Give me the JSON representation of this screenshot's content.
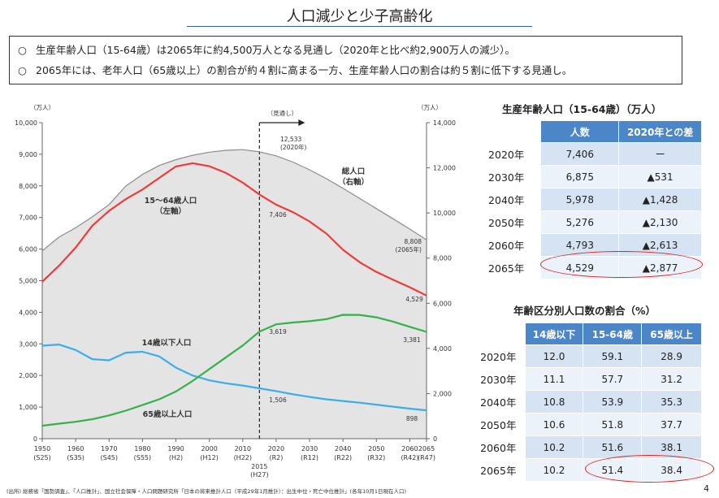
{
  "title": "人口減少と少子高齢化",
  "summary": {
    "bullet_symbol": "○",
    "lines": [
      "生産年齢人口（15-64歳）は2065年に約4,500万人となる見通し（2020年と比べ約2,900万人の減少）。",
      "2065年には、老年人口（65歳以上）の割合が約４割に高まる一方、生産年齢人口の割合は約５割に低下する見通し。"
    ]
  },
  "chart_data": {
    "type": "line",
    "left_unit": "（万人）",
    "right_unit": "（万人）",
    "left_axis": {
      "range": [
        0,
        10000
      ],
      "ticks": [
        "0",
        "1,000",
        "2,000",
        "3,000",
        "4,000",
        "5,000",
        "6,000",
        "7,000",
        "8,000",
        "9,000",
        "10,000"
      ]
    },
    "right_axis": {
      "range": [
        0,
        14000
      ],
      "ticks": [
        "0",
        "2,000",
        "4,000",
        "6,000",
        "8,000",
        "10,000",
        "12,000",
        "14,000"
      ]
    },
    "x_ticks": [
      {
        "x": 1950,
        "top": "1950",
        "bottom": "(S25)"
      },
      {
        "x": 1960,
        "top": "1960",
        "bottom": "(S35)"
      },
      {
        "x": 1970,
        "top": "1970",
        "bottom": "(S45)"
      },
      {
        "x": 1980,
        "top": "1980",
        "bottom": "(S55)"
      },
      {
        "x": 1990,
        "top": "1990",
        "bottom": "(H2)"
      },
      {
        "x": 2000,
        "top": "2000",
        "bottom": "(H12)"
      },
      {
        "x": 2010,
        "top": "2010",
        "bottom": "(H22)"
      },
      {
        "x": 2020,
        "top": "2020",
        "bottom": "(R2)"
      },
      {
        "x": 2030,
        "top": "2030",
        "bottom": "(R12)"
      },
      {
        "x": 2040,
        "top": "2040",
        "bottom": "(R22)"
      },
      {
        "x": 2050,
        "top": "2050",
        "bottom": "(R32)"
      },
      {
        "x": 2060,
        "top": "2060",
        "bottom": "(R42)"
      },
      {
        "x": 2065,
        "top": "2065",
        "bottom": "(R47)"
      }
    ],
    "divider": {
      "year": 2015,
      "label": "2015",
      "sublabel": "(H27)",
      "forecast_label": "（見通し）"
    },
    "series": [
      {
        "name": "総人口",
        "sublabel": "（右軸）",
        "axis": "right",
        "color": "#8c8c8c",
        "fill": "#e4e4e4",
        "x": [
          1950,
          1955,
          1960,
          1965,
          1970,
          1975,
          1980,
          1985,
          1990,
          1995,
          2000,
          2005,
          2010,
          2015,
          2020,
          2025,
          2030,
          2035,
          2040,
          2045,
          2050,
          2055,
          2060,
          2065
        ],
        "values": [
          8320,
          8928,
          9342,
          9828,
          10372,
          11194,
          11706,
          12105,
          12361,
          12557,
          12693,
          12777,
          12806,
          12709,
          12533,
          12254,
          11913,
          11522,
          11092,
          10642,
          10192,
          9744,
          9284,
          8808
        ]
      },
      {
        "name": "15～64歳人口",
        "sublabel": "（左軸）",
        "axis": "left",
        "color": "#f03a3a",
        "x": [
          1950,
          1955,
          1960,
          1965,
          1970,
          1975,
          1980,
          1985,
          1990,
          1995,
          2000,
          2005,
          2010,
          2015,
          2020,
          2025,
          2030,
          2035,
          2040,
          2045,
          2050,
          2055,
          2060,
          2065
        ],
        "values": [
          4966,
          5473,
          6047,
          6744,
          7212,
          7581,
          7884,
          8251,
          8614,
          8717,
          8622,
          8409,
          8103,
          7728,
          7406,
          7170,
          6875,
          6494,
          5978,
          5584,
          5276,
          5028,
          4793,
          4529
        ]
      },
      {
        "name": "14歳以下人口",
        "axis": "left",
        "color": "#3aaee8",
        "x": [
          1950,
          1955,
          1960,
          1965,
          1970,
          1975,
          1980,
          1985,
          1990,
          1995,
          2000,
          2005,
          2010,
          2015,
          2020,
          2025,
          2030,
          2035,
          2040,
          2045,
          2050,
          2055,
          2060,
          2065
        ],
        "values": [
          2943,
          2980,
          2807,
          2517,
          2482,
          2722,
          2751,
          2603,
          2249,
          2001,
          1847,
          1752,
          1680,
          1595,
          1506,
          1407,
          1321,
          1246,
          1194,
          1138,
          1077,
          1012,
          951,
          898
        ]
      },
      {
        "name": "65歳以上人口",
        "axis": "left",
        "color": "#34b24a",
        "x": [
          1950,
          1955,
          1960,
          1965,
          1970,
          1975,
          1980,
          1985,
          1990,
          1995,
          2000,
          2005,
          2010,
          2015,
          2020,
          2025,
          2030,
          2035,
          2040,
          2045,
          2050,
          2055,
          2060,
          2065
        ],
        "values": [
          411,
          475,
          535,
          618,
          739,
          887,
          1065,
          1247,
          1493,
          1828,
          2204,
          2576,
          2948,
          3387,
          3619,
          3677,
          3716,
          3782,
          3921,
          3919,
          3841,
          3704,
          3540,
          3381
        ]
      }
    ],
    "annotations": [
      {
        "text": "12,533",
        "sub": "(2020年)"
      },
      {
        "text": "8,808",
        "sub": "(2065年)"
      },
      {
        "text": "7,406"
      },
      {
        "text": "4,529"
      },
      {
        "text": "3,619"
      },
      {
        "text": "3,381"
      },
      {
        "text": "1,506"
      },
      {
        "text": "898"
      }
    ]
  },
  "table1": {
    "title": "生産年齢人口（15-64歳）（万人）",
    "headers": [
      "",
      "人数",
      "2020年との差"
    ],
    "rows": [
      [
        "2020年",
        "7,406",
        "ー"
      ],
      [
        "2030年",
        "6,875",
        "▲531"
      ],
      [
        "2040年",
        "5,978",
        "▲1,428"
      ],
      [
        "2050年",
        "5,276",
        "▲2,130"
      ],
      [
        "2060年",
        "4,793",
        "▲2,613"
      ],
      [
        "2065年",
        "4,529",
        "▲2,877"
      ]
    ]
  },
  "table2": {
    "title": "年齢区分別人口数の割合（%）",
    "headers": [
      "",
      "14歳以下",
      "15-64歳",
      "65歳以上"
    ],
    "rows": [
      [
        "2020年",
        "12.0",
        "59.1",
        "28.9"
      ],
      [
        "2030年",
        "11.1",
        "57.7",
        "31.2"
      ],
      [
        "2040年",
        "10.8",
        "53.9",
        "35.3"
      ],
      [
        "2050年",
        "10.6",
        "51.8",
        "37.7"
      ],
      [
        "2060年",
        "10.2",
        "51.6",
        "38.1"
      ],
      [
        "2065年",
        "10.2",
        "51.4",
        "38.4"
      ]
    ]
  },
  "source": "(出所) 総務省「国勢調査」、「人口推計」、国立社会保障・人口問題研究所「日本の将来推計人口（平成29年1月推計）：出生中位・死亡中位推計」(各年10月1日現在人口)",
  "page_number": "4"
}
